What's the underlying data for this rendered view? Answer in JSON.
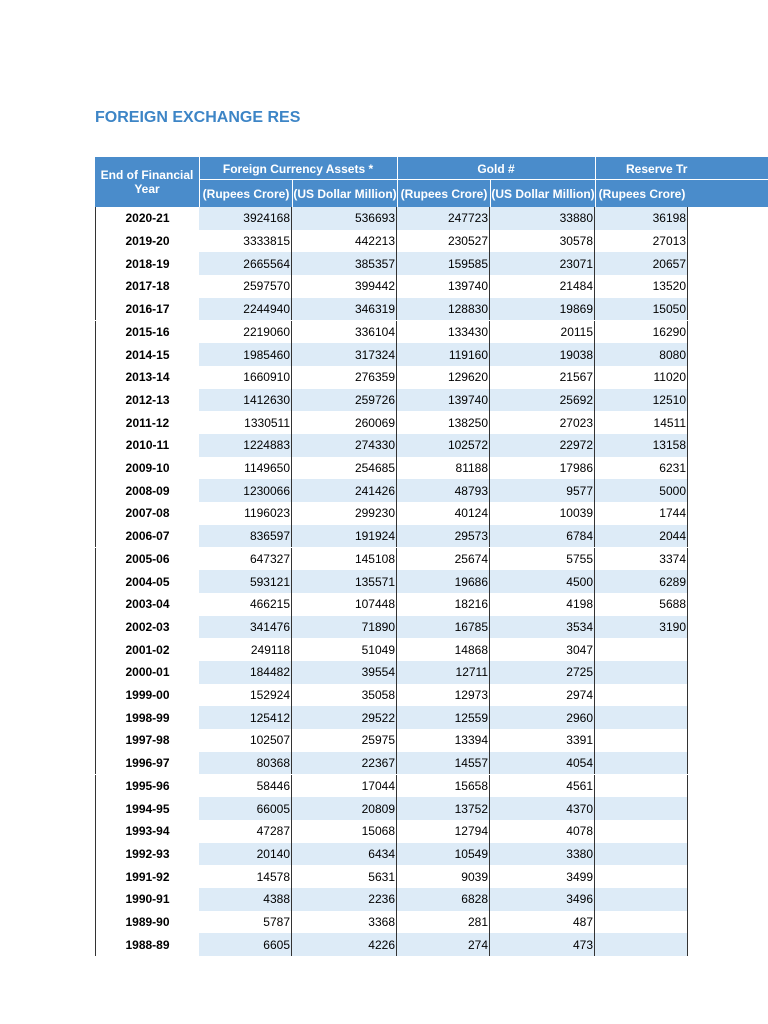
{
  "title": "FOREIGN EXCHANGE RES",
  "table": {
    "year_header": "End of Financial Year",
    "groups": [
      "Foreign Currency Assets *",
      "Gold #",
      "Reserve Tr"
    ],
    "subheaders": [
      "(Rupees Crore)",
      "(US Dollar Million)",
      "(Rupees Crore)",
      "(US Dollar Million)",
      "(Rupees Crore)"
    ],
    "rows": [
      [
        "2020-21",
        3924168,
        536693,
        247723,
        33880,
        36198
      ],
      [
        "2019-20",
        3333815,
        442213,
        230527,
        30578,
        27013
      ],
      [
        "2018-19",
        2665564,
        385357,
        159585,
        23071,
        20657
      ],
      [
        "2017-18",
        2597570,
        399442,
        139740,
        21484,
        13520
      ],
      [
        "2016-17",
        2244940,
        346319,
        128830,
        19869,
        15050
      ],
      [
        "2015-16",
        2219060,
        336104,
        133430,
        20115,
        16290
      ],
      [
        "2014-15",
        1985460,
        317324,
        119160,
        19038,
        8080
      ],
      [
        "2013-14",
        1660910,
        276359,
        129620,
        21567,
        11020
      ],
      [
        "2012-13",
        1412630,
        259726,
        139740,
        25692,
        12510
      ],
      [
        "2011-12",
        1330511,
        260069,
        138250,
        27023,
        14511
      ],
      [
        "2010-11",
        1224883,
        274330,
        102572,
        22972,
        13158
      ],
      [
        "2009-10",
        1149650,
        254685,
        81188,
        17986,
        6231
      ],
      [
        "2008-09",
        1230066,
        241426,
        48793,
        9577,
        5000
      ],
      [
        "2007-08",
        1196023,
        299230,
        40124,
        10039,
        1744
      ],
      [
        "2006-07",
        836597,
        191924,
        29573,
        6784,
        2044
      ],
      [
        "2005-06",
        647327,
        145108,
        25674,
        5755,
        3374
      ],
      [
        "2004-05",
        593121,
        135571,
        19686,
        4500,
        6289
      ],
      [
        "2003-04",
        466215,
        107448,
        18216,
        4198,
        5688
      ],
      [
        "2002-03",
        341476,
        71890,
        16785,
        3534,
        3190
      ],
      [
        "2001-02",
        249118,
        51049,
        14868,
        3047,
        null
      ],
      [
        "2000-01",
        184482,
        39554,
        12711,
        2725,
        null
      ],
      [
        "1999-00",
        152924,
        35058,
        12973,
        2974,
        null
      ],
      [
        "1998-99",
        125412,
        29522,
        12559,
        2960,
        null
      ],
      [
        "1997-98",
        102507,
        25975,
        13394,
        3391,
        null
      ],
      [
        "1996-97",
        80368,
        22367,
        14557,
        4054,
        null
      ],
      [
        "1995-96",
        58446,
        17044,
        15658,
        4561,
        null
      ],
      [
        "1994-95",
        66005,
        20809,
        13752,
        4370,
        null
      ],
      [
        "1993-94",
        47287,
        15068,
        12794,
        4078,
        null
      ],
      [
        "1992-93",
        20140,
        6434,
        10549,
        3380,
        null
      ],
      [
        "1991-92",
        14578,
        5631,
        9039,
        3499,
        null
      ],
      [
        "1990-91",
        4388,
        2236,
        6828,
        3496,
        null
      ],
      [
        "1989-90",
        5787,
        3368,
        281,
        487,
        null
      ],
      [
        "1988-89",
        6605,
        4226,
        274,
        473,
        null
      ]
    ]
  }
}
